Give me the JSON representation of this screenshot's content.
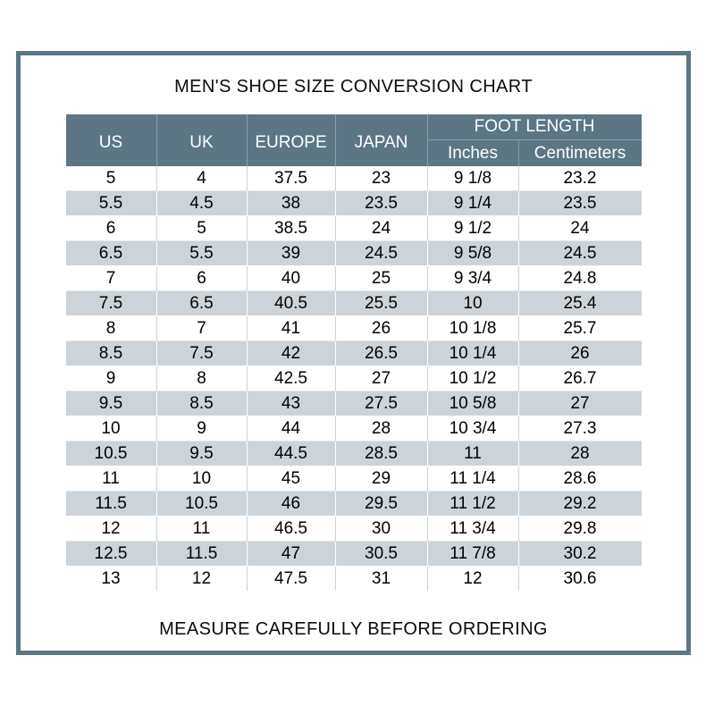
{
  "page": {
    "title": "MEN'S SHOE SIZE CONVERSION CHART",
    "footer_note": "MEASURE CAREFULLY BEFORE ORDERING"
  },
  "colors": {
    "header_bg": "#5c7684",
    "frame_border": "#5c7684",
    "alt_row_bg": "#ccd4da",
    "header_text": "#ffffff",
    "body_text": "#000000"
  },
  "chart_data": {
    "type": "table",
    "title": "MEN'S SHOE SIZE CONVERSION CHART",
    "column_groups": [
      {
        "label": "FOOT LENGTH",
        "spans": [
          "Inches",
          "Centimeters"
        ]
      }
    ],
    "columns": [
      "US",
      "UK",
      "EUROPE",
      "JAPAN",
      "Inches",
      "Centimeters"
    ],
    "rows": [
      [
        "5",
        "4",
        "37.5",
        "23",
        "9 1/8",
        "23.2"
      ],
      [
        "5.5",
        "4.5",
        "38",
        "23.5",
        "9 1/4",
        "23.5"
      ],
      [
        "6",
        "5",
        "38.5",
        "24",
        "9 1/2",
        "24"
      ],
      [
        "6.5",
        "5.5",
        "39",
        "24.5",
        "9 5/8",
        "24.5"
      ],
      [
        "7",
        "6",
        "40",
        "25",
        "9 3/4",
        "24.8"
      ],
      [
        "7.5",
        "6.5",
        "40.5",
        "25.5",
        "10",
        "25.4"
      ],
      [
        "8",
        "7",
        "41",
        "26",
        "10 1/8",
        "25.7"
      ],
      [
        "8.5",
        "7.5",
        "42",
        "26.5",
        "10 1/4",
        "26"
      ],
      [
        "9",
        "8",
        "42.5",
        "27",
        "10 1/2",
        "26.7"
      ],
      [
        "9.5",
        "8.5",
        "43",
        "27.5",
        "10 5/8",
        "27"
      ],
      [
        "10",
        "9",
        "44",
        "28",
        "10 3/4",
        "27.3"
      ],
      [
        "10.5",
        "9.5",
        "44.5",
        "28.5",
        "11",
        "28"
      ],
      [
        "11",
        "10",
        "45",
        "29",
        "11 1/4",
        "28.6"
      ],
      [
        "11.5",
        "10.5",
        "46",
        "29.5",
        "11 1/2",
        "29.2"
      ],
      [
        "12",
        "11",
        "46.5",
        "30",
        "11 3/4",
        "29.8"
      ],
      [
        "12.5",
        "11.5",
        "47",
        "30.5",
        "11 7/8",
        "30.2"
      ],
      [
        "13",
        "12",
        "47.5",
        "31",
        "12",
        "30.6"
      ]
    ]
  }
}
